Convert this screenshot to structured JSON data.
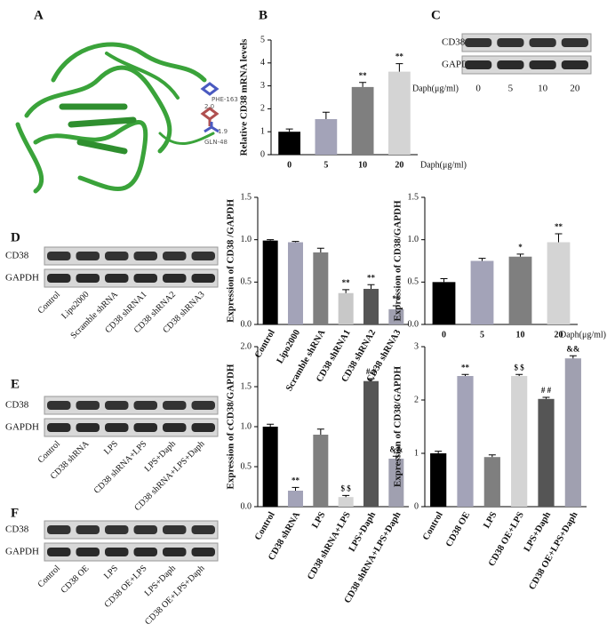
{
  "panel_letters": [
    "A",
    "B",
    "C",
    "D",
    "E",
    "F"
  ],
  "structure_labels": [
    "PHE-163",
    "2.0",
    "1.9",
    "GLN-48"
  ],
  "blots": [
    {
      "rows": [
        "CD38",
        "GAPDH"
      ],
      "lanes": [
        "0",
        "5",
        "10",
        "20"
      ],
      "lane_title": "Daph(μg/ml)"
    },
    {
      "rows": [
        "CD38",
        "GAPDH"
      ],
      "lanes": [
        "Control",
        "Lipo2000",
        "Scramble shRNA",
        "CD38 shRNA1",
        "CD38 shRNA2",
        "CD38 shRNA3"
      ]
    },
    {
      "rows": [
        "CD38",
        "GAPDH"
      ],
      "lanes": [
        "Control",
        "CD38 shRNA",
        "LPS",
        "CD38 shRNA+LPS",
        "LPS+Daph",
        "CD38 shRNA+LPS+Daph"
      ]
    },
    {
      "rows": [
        "CD38",
        "GAPDH"
      ],
      "lanes": [
        "Control",
        "CD38 OE",
        "LPS",
        "CD38 OE+LPS",
        "LPS+Daph",
        "CD38 OE+LPS+Daph"
      ]
    }
  ],
  "chart_data": [
    {
      "type": "bar",
      "y_label": "Relative CD38 mRNA levels",
      "x_label": "Daph(μg/ml)",
      "categories": [
        "0",
        "5",
        "10",
        "20"
      ],
      "values": [
        1.0,
        1.55,
        2.95,
        3.62
      ],
      "errors": [
        0.12,
        0.3,
        0.2,
        0.35
      ],
      "annotations": [
        null,
        null,
        "**",
        "**"
      ],
      "colors": [
        "#000000",
        "#a3a3b8",
        "#7f7f7f",
        "#d4d4d4"
      ],
      "ylim": [
        0,
        5
      ],
      "yticks": [
        0,
        1,
        2,
        3,
        4,
        5
      ]
    },
    {
      "type": "bar",
      "y_label": "Expression of CD38 /GAPDH",
      "categories": [
        "Control",
        "Lipo2000",
        "Scramble shRNA",
        "CD38 shRNA1",
        "CD38 shRNA2",
        "CD38 shRNA3"
      ],
      "values": [
        0.99,
        0.97,
        0.85,
        0.37,
        0.42,
        0.18
      ],
      "errors": [
        0.01,
        0.01,
        0.05,
        0.04,
        0.05,
        0.04
      ],
      "annotations": [
        null,
        null,
        null,
        "**",
        "**",
        "**"
      ],
      "colors": [
        "#000000",
        "#a3a3b8",
        "#7f7f7f",
        "#c8c8c8",
        "#555555",
        "#a0a0b0"
      ],
      "ylim": [
        0,
        1.5
      ],
      "yticks": [
        {
          "value": 0,
          "label": "0.0"
        },
        0.5,
        {
          "value": 1,
          "label": "1.0"
        },
        1.5
      ]
    },
    {
      "type": "bar",
      "y_label": "Expression of CD38/GAPDH",
      "x_label": "Daph(μg/ml)",
      "categories": [
        "0",
        "5",
        "10",
        "20"
      ],
      "values": [
        0.5,
        0.75,
        0.8,
        0.97
      ],
      "errors": [
        0.04,
        0.03,
        0.03,
        0.1
      ],
      "annotations": [
        null,
        null,
        "*",
        "**"
      ],
      "colors": [
        "#000000",
        "#a3a3b8",
        "#7f7f7f",
        "#d4d4d4"
      ],
      "ylim": [
        0,
        1.5
      ],
      "yticks": [
        {
          "value": 0,
          "label": "0.0"
        },
        0.5,
        {
          "value": 1,
          "label": "1.0"
        },
        1.5
      ]
    },
    {
      "type": "bar",
      "y_label": "Expression of cCD38/GAPDH",
      "categories": [
        "Control",
        "CD38 shRNA",
        "LPS",
        "CD38 shRNA+LPS",
        "LPS+Daph",
        "CD38 shRNA+LPS+Daph"
      ],
      "values": [
        1.0,
        0.2,
        0.9,
        0.12,
        1.57,
        0.6
      ],
      "errors": [
        0.03,
        0.04,
        0.07,
        0.02,
        0.03,
        0.03
      ],
      "annotations": [
        null,
        "**",
        null,
        "$ $",
        "# #",
        "&&"
      ],
      "colors": [
        "#000000",
        "#a3a3b8",
        "#7f7f7f",
        "#d4d4d4",
        "#555555",
        "#a0a0b0"
      ],
      "ylim": [
        0,
        2
      ],
      "yticks": [
        {
          "value": 0,
          "label": "0.0"
        },
        0.5,
        {
          "value": 1,
          "label": "1.0"
        },
        1.5,
        {
          "value": 2,
          "label": "2.0"
        }
      ]
    },
    {
      "type": "bar",
      "y_label": "Expression of CD38/GAPDH",
      "categories": [
        "Control",
        "CD38 OE",
        "LPS",
        "CD38 OE+LPS",
        "LPS+Daph",
        "CD38 OE+LPS+Daph"
      ],
      "values": [
        1.0,
        2.45,
        0.93,
        2.45,
        2.02,
        2.78
      ],
      "errors": [
        0.04,
        0.03,
        0.04,
        0.03,
        0.03,
        0.05
      ],
      "annotations": [
        null,
        "**",
        null,
        "$ $",
        "# #",
        "&&"
      ],
      "colors": [
        "#000000",
        "#a3a3b8",
        "#7f7f7f",
        "#d4d4d4",
        "#555555",
        "#a0a0b0"
      ],
      "ylim": [
        0,
        3
      ],
      "yticks": [
        0,
        1,
        2,
        3
      ]
    }
  ]
}
